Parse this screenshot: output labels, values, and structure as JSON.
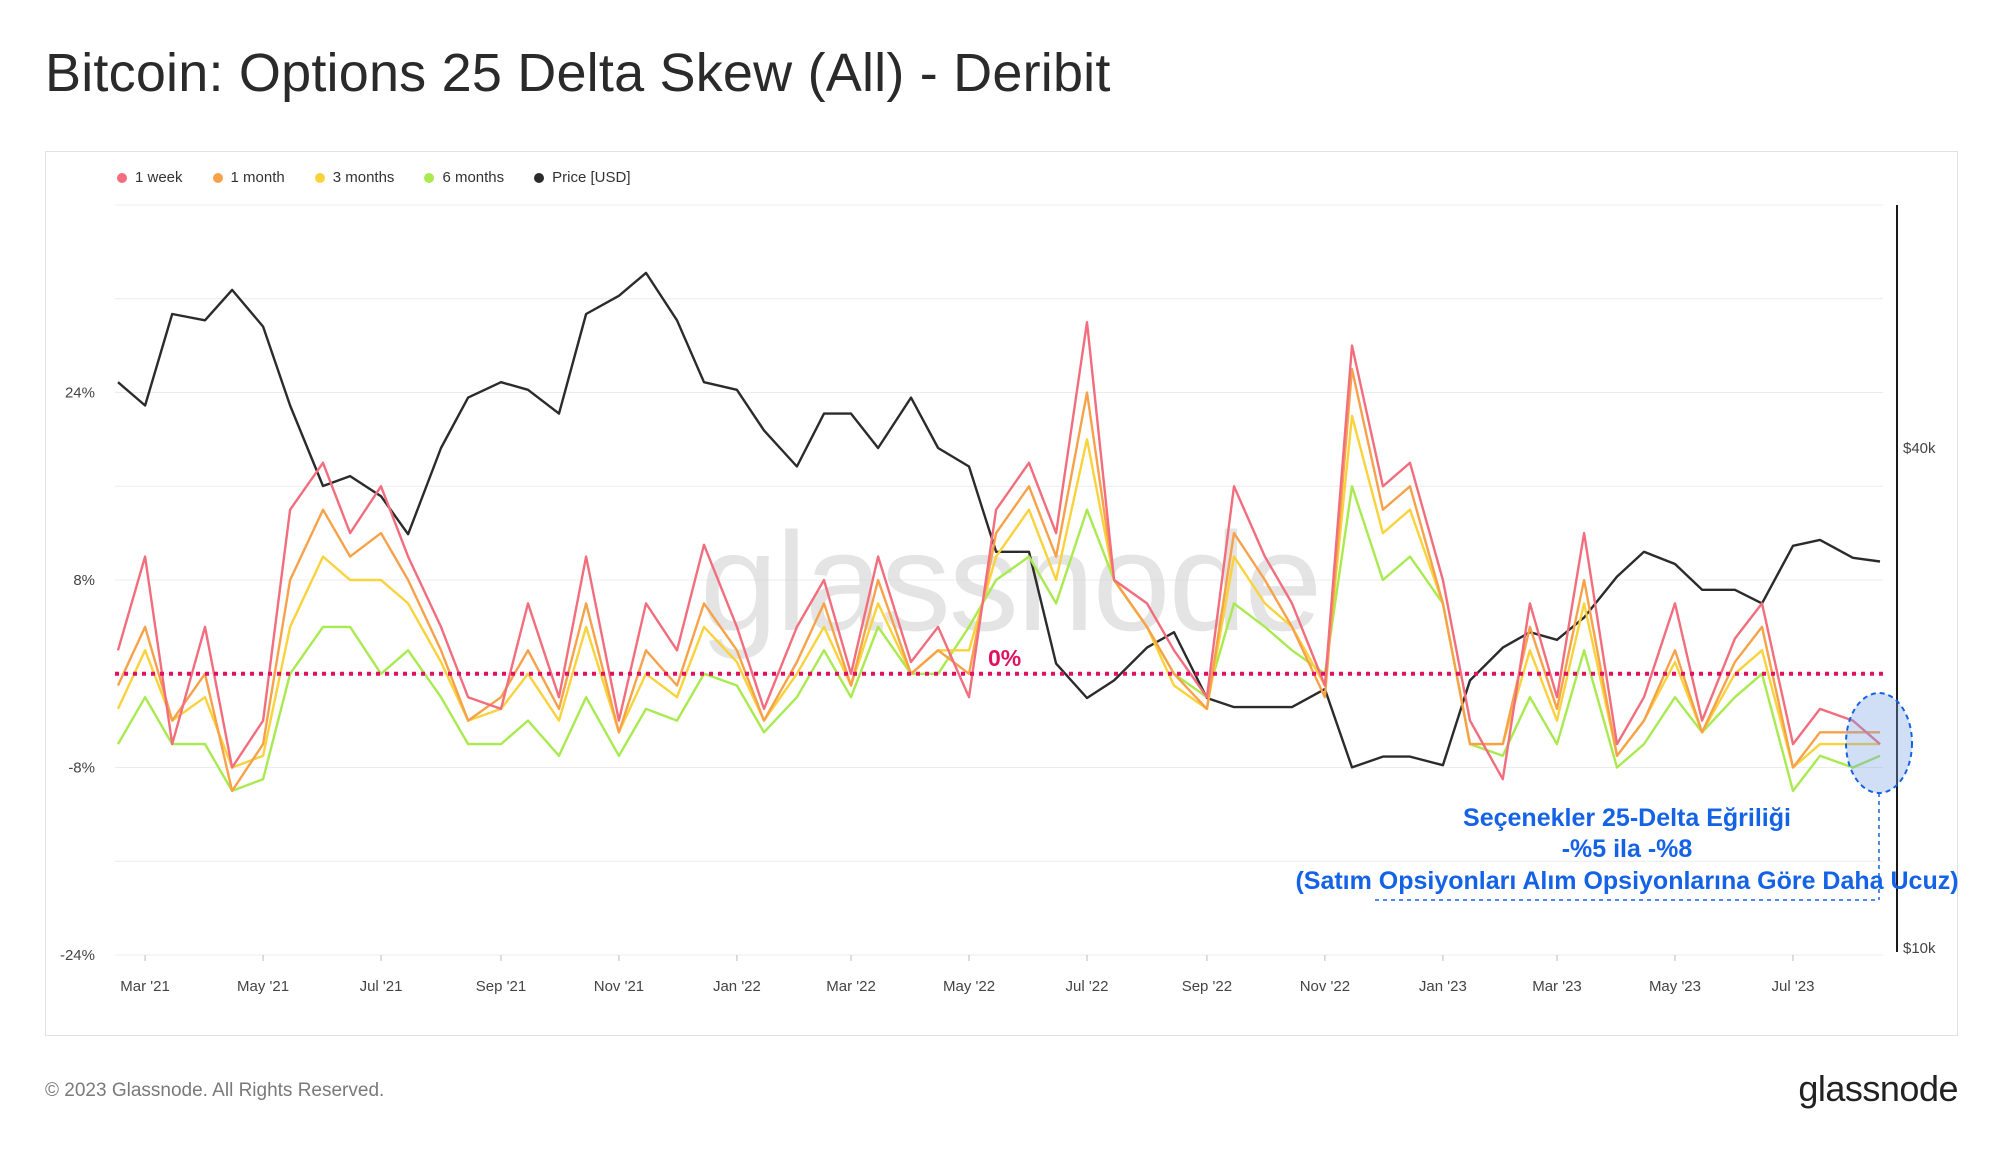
{
  "title": "Bitcoin: Options 25 Delta Skew (All) - Deribit",
  "footer": {
    "copyright": "© 2023 Glassnode. All Rights Reserved.",
    "logo": "glassnode"
  },
  "watermark": "glassnode",
  "colors": {
    "1w": "#f26d7d",
    "1m": "#f7a24a",
    "3m": "#f9d23c",
    "6m": "#a8ea4f",
    "price": "#2b2b2b",
    "zero": "#e0115f",
    "annotation": "#1463e6"
  },
  "chart_data": {
    "type": "line",
    "legend": [
      {
        "name": "1 week",
        "color": "#f26d7d"
      },
      {
        "name": "1 month",
        "color": "#f7a24a"
      },
      {
        "name": "3 months",
        "color": "#f9d23c"
      },
      {
        "name": "6 months",
        "color": "#a8ea4f"
      },
      {
        "name": "Price [USD]",
        "color": "#2b2b2b"
      }
    ],
    "legend_position": "top-left",
    "x_ticks": [
      "Mar '21",
      "May '21",
      "Jul '21",
      "Sep '21",
      "Nov '21",
      "Jan '22",
      "Mar '22",
      "May '22",
      "Jul '22",
      "Sep '22",
      "Nov '22",
      "Jan '23",
      "Mar '23",
      "May '23",
      "Jul '23"
    ],
    "y_left_ticks": [
      "24%",
      "8%",
      "-8%",
      "-24%"
    ],
    "y_left_range": [
      -24,
      40
    ],
    "y_right_ticks": [
      "$40k",
      "$10k"
    ],
    "y_right_scale": "log",
    "x": [
      "2021-02-15",
      "2021-03-01",
      "2021-03-15",
      "2021-04-01",
      "2021-04-15",
      "2021-05-01",
      "2021-05-15",
      "2021-06-01",
      "2021-06-15",
      "2021-07-01",
      "2021-07-15",
      "2021-08-01",
      "2021-08-15",
      "2021-09-01",
      "2021-09-15",
      "2021-10-01",
      "2021-10-15",
      "2021-11-01",
      "2021-11-15",
      "2021-12-01",
      "2021-12-15",
      "2022-01-01",
      "2022-01-15",
      "2022-02-01",
      "2022-02-15",
      "2022-03-01",
      "2022-03-15",
      "2022-04-01",
      "2022-04-15",
      "2022-05-01",
      "2022-05-15",
      "2022-06-01",
      "2022-06-15",
      "2022-07-01",
      "2022-07-15",
      "2022-08-01",
      "2022-08-15",
      "2022-09-01",
      "2022-09-15",
      "2022-10-01",
      "2022-10-15",
      "2022-11-01",
      "2022-11-15",
      "2022-12-01",
      "2022-12-15",
      "2023-01-01",
      "2023-01-15",
      "2023-02-01",
      "2023-02-15",
      "2023-03-01",
      "2023-03-15",
      "2023-04-01",
      "2023-04-15",
      "2023-05-01",
      "2023-05-15",
      "2023-06-01",
      "2023-06-15",
      "2023-07-01",
      "2023-07-15",
      "2023-08-01",
      "2023-08-15"
    ],
    "series": [
      {
        "name": "1 week",
        "color": "#f26d7d",
        "axis": "left",
        "values": [
          2,
          10,
          -6,
          4,
          -8,
          -4,
          14,
          18,
          12,
          16,
          10,
          4,
          -2,
          -3,
          6,
          -2,
          10,
          -4,
          6,
          2,
          11,
          4,
          -3,
          4,
          8,
          0,
          10,
          1,
          4,
          -2,
          14,
          18,
          12,
          30,
          8,
          6,
          2,
          -2,
          16,
          10,
          6,
          -1,
          28,
          16,
          18,
          8,
          -4,
          -9,
          6,
          -2,
          12,
          -6,
          -2,
          6,
          -4,
          3,
          6,
          -6,
          -3,
          -4,
          -6
        ]
      },
      {
        "name": "1 month",
        "color": "#f7a24a",
        "axis": "left",
        "values": [
          -1,
          4,
          -4,
          0,
          -10,
          -6,
          8,
          14,
          10,
          12,
          8,
          2,
          -4,
          -2,
          2,
          -3,
          6,
          -5,
          2,
          -1,
          6,
          2,
          -4,
          1,
          6,
          -1,
          8,
          0,
          2,
          0,
          12,
          16,
          10,
          24,
          8,
          4,
          0,
          -3,
          12,
          8,
          4,
          -2,
          26,
          14,
          16,
          6,
          -6,
          -6,
          4,
          -3,
          8,
          -7,
          -4,
          2,
          -5,
          1,
          4,
          -8,
          -5,
          -5,
          -5
        ]
      },
      {
        "name": "3 months",
        "color": "#f9d23c",
        "axis": "left",
        "values": [
          -3,
          2,
          -4,
          -2,
          -8,
          -7,
          4,
          10,
          8,
          8,
          6,
          1,
          -4,
          -3,
          0,
          -4,
          4,
          -5,
          0,
          -2,
          4,
          1,
          -4,
          0,
          4,
          -1,
          6,
          0,
          2,
          2,
          10,
          14,
          8,
          20,
          8,
          4,
          -1,
          -3,
          10,
          6,
          4,
          -1,
          22,
          12,
          14,
          6,
          -6,
          -6,
          2,
          -4,
          6,
          -7,
          -4,
          1,
          -5,
          0,
          2,
          -8,
          -6,
          -6,
          -6
        ]
      },
      {
        "name": "6 months",
        "color": "#a8ea4f",
        "axis": "left",
        "values": [
          -6,
          -2,
          -6,
          -6,
          -10,
          -9,
          0,
          4,
          4,
          0,
          2,
          -2,
          -6,
          -6,
          -4,
          -7,
          -2,
          -7,
          -3,
          -4,
          0,
          -1,
          -5,
          -2,
          2,
          -2,
          4,
          0,
          0,
          4,
          8,
          10,
          6,
          14,
          8,
          4,
          0,
          -2,
          6,
          4,
          2,
          0,
          16,
          8,
          10,
          6,
          -6,
          -7,
          -2,
          -6,
          2,
          -8,
          -6,
          -2,
          -5,
          -2,
          0,
          -10,
          -7,
          -8,
          -7
        ]
      },
      {
        "name": "Price [USD]",
        "color": "#2b2b2b",
        "axis": "right",
        "values": [
          48000,
          45000,
          58000,
          57000,
          62000,
          56000,
          45000,
          36000,
          37000,
          35000,
          31500,
          40000,
          46000,
          48000,
          47000,
          44000,
          58000,
          61000,
          65000,
          57000,
          48000,
          47000,
          42000,
          38000,
          44000,
          44000,
          40000,
          46000,
          40000,
          38000,
          30000,
          30000,
          22000,
          20000,
          21000,
          23000,
          24000,
          20000,
          19500,
          19500,
          19500,
          20500,
          16500,
          17000,
          17000,
          16600,
          21000,
          23000,
          24000,
          23500,
          25000,
          28000,
          30000,
          29000,
          27000,
          27000,
          26000,
          30500,
          31000,
          29500,
          29200
        ]
      }
    ],
    "reference_lines": [
      {
        "y": 0,
        "label": "0%",
        "color": "#e0115f"
      }
    ],
    "annotation": {
      "line1": "Seçenekler 25-Delta Eğriliği",
      "line2": "-%5 ila -%8",
      "line3": "(Satım Opsiyonları Alım Opsiyonlarına Göre Daha Ucuz)"
    }
  }
}
